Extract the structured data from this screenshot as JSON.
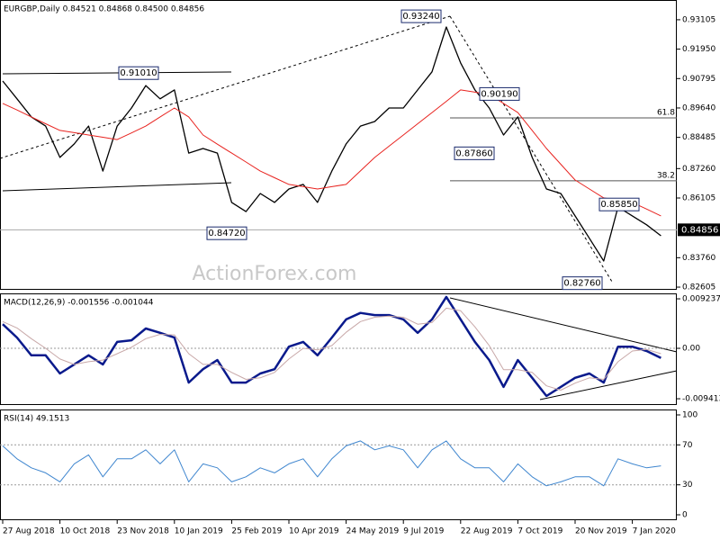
{
  "chart_data": [
    {
      "type": "line",
      "title": "EURGBP,Daily  0.84521 0.84868 0.84500 0.84856",
      "ylim": [
        0.825,
        0.9388
      ],
      "yticks": [
        0.93105,
        {
          "value": 0.9195,
          "label": "0.91950"
        },
        0.90795,
        {
          "value": 0.8964,
          "label": "0.89640"
        },
        0.88485,
        {
          "value": 0.8726,
          "label": "0.87260"
        },
        0.86105,
        {
          "value": 0.8376,
          "label": "0.83760"
        },
        0.82605
      ],
      "series": [
        {
          "color": "#000000",
          "values": [
            0.907,
            0.9,
            0.8929,
            0.8893,
            0.877,
            0.8823,
            0.8893,
            0.8716,
            0.8893,
            0.8964,
            0.9052,
            0.9,
            0.9035,
            0.8787,
            0.8805,
            0.8787,
            0.8593,
            0.8557,
            0.8628,
            0.8593,
            0.8646,
            0.8664,
            0.8593,
            0.8716,
            0.8823,
            0.8893,
            0.8911,
            0.8964,
            0.8964,
            0.9035,
            0.9106,
            0.9282,
            0.9141,
            0.9035,
            0.8964,
            0.8858,
            0.8929,
            0.877,
            0.8646,
            0.8628,
            0.854,
            0.8452,
            0.8363,
            0.8575,
            0.854,
            0.8505,
            0.8462
          ]
        },
        {
          "color": "#e8231f",
          "values": [
            0.8982,
            0.8956,
            0.8929,
            0.8902,
            0.8876,
            0.8867,
            0.8858,
            0.8849,
            0.884,
            0.8866,
            0.8893,
            0.8929,
            0.8964,
            0.8929,
            0.8858,
            0.8822,
            0.8787,
            0.8752,
            0.8716,
            0.869,
            0.8664,
            0.8655,
            0.8646,
            0.8655,
            0.8664,
            0.8717,
            0.877,
            0.8814,
            0.8858,
            0.8902,
            0.8946,
            0.899,
            0.9035,
            0.9026,
            0.9017,
            0.8982,
            0.8946,
            0.8876,
            0.8805,
            0.8743,
            0.8681,
            0.8646,
            0.8611,
            0.8602,
            0.8593,
            0.8567,
            0.854
          ]
        }
      ],
      "last_price": 0.84856,
      "annotations": [
        {
          "value": 0.9324,
          "label": "0.93240"
        },
        {
          "value": 0.9101,
          "label": "0.91010"
        },
        {
          "value": 0.9019,
          "label": "0.90190"
        },
        {
          "value": 0.8786,
          "label": "0.87860"
        },
        {
          "value": 0.8472,
          "label": "0.84720"
        },
        {
          "value": 0.8585,
          "label": "0.85850"
        },
        {
          "value": 0.8276,
          "label": "0.82760"
        }
      ],
      "fib": {
        "ratios": [
          61.8,
          38.2
        ],
        "levels": [
          0.8925,
          0.8678
        ]
      },
      "watermark": "ActionForex.com"
    },
    {
      "type": "line",
      "title": "MACD(12,26,9) -0.001556 -0.001044",
      "ylim": [
        -0.01058,
        0.01025
      ],
      "yticks": [
        0.009237,
        {
          "value": 0,
          "label": "0.00"
        },
        -0.009413
      ],
      "levels": [
        0
      ],
      "series": [
        {
          "color": "#0a1a8c",
          "values": [
            0.0045,
            0.002,
            -0.0013,
            -0.0013,
            -0.0047,
            -0.003,
            -0.0013,
            -0.003,
            0.0012,
            0.0015,
            0.0037,
            0.0029,
            0.002,
            -0.0064,
            -0.0039,
            -0.0022,
            -0.0064,
            -0.0064,
            -0.0047,
            -0.0039,
            0.0003,
            0.0012,
            -0.0013,
            0.002,
            0.0054,
            0.0066,
            0.0062,
            0.0062,
            0.0054,
            0.0029,
            0.0054,
            0.0096,
            0.0054,
            0.0012,
            -0.0022,
            -0.0072,
            -0.0022,
            -0.0055,
            -0.0089,
            -0.0072,
            -0.0055,
            -0.0047,
            -0.0064,
            0.0003,
            0.0003,
            -0.0005,
            -0.0018
          ]
        },
        {
          "color": "#c8a8a8",
          "values": [
            0.005,
            0.0038,
            0.0018,
            0.0,
            -0.002,
            -0.003,
            -0.0025,
            -0.0022,
            -0.001,
            0.0002,
            0.0018,
            0.0026,
            0.0025,
            -0.001,
            -0.003,
            -0.003,
            -0.0045,
            -0.0058,
            -0.0055,
            -0.0045,
            -0.002,
            0.0,
            -0.0003,
            0.0005,
            0.003,
            0.005,
            0.0058,
            0.006,
            0.0058,
            0.0045,
            0.0048,
            0.0075,
            0.007,
            0.004,
            0.0005,
            -0.004,
            -0.004,
            -0.0045,
            -0.007,
            -0.0078,
            -0.0065,
            -0.0055,
            -0.0058,
            -0.0025,
            -0.0005,
            -0.0002,
            -0.001
          ]
        }
      ]
    },
    {
      "type": "line",
      "title": "RSI(14) 49.1513",
      "ylim": [
        -5.4,
        105.4
      ],
      "yticks": [
        100,
        70,
        30,
        0
      ],
      "levels": [
        70,
        30
      ],
      "categories": [
        "27 Aug 2018",
        null,
        null,
        null,
        "10 Oct 2018",
        null,
        null,
        null,
        "23 Nov 2018",
        null,
        null,
        null,
        "10 Jan 2019",
        null,
        null,
        null,
        "25 Feb 2019",
        null,
        null,
        null,
        "10 Apr 2019",
        null,
        null,
        null,
        "24 May 2019",
        null,
        null,
        null,
        "9 Jul 2019",
        null,
        null,
        null,
        "22 Aug 2019",
        null,
        null,
        null,
        "7 Oct 2019",
        null,
        null,
        null,
        "20 Nov 2019",
        null,
        null,
        null,
        "7 Jan 2020",
        null,
        null
      ],
      "series": [
        {
          "color": "#3f86cf",
          "values": [
            69,
            56,
            47,
            42,
            33,
            51,
            60,
            38,
            56,
            56,
            65,
            51,
            65,
            33,
            51,
            47,
            33,
            38,
            47,
            42,
            51,
            56,
            38,
            56,
            69,
            74,
            65,
            69,
            65,
            47,
            65,
            74,
            56,
            47,
            47,
            33,
            51,
            38,
            29,
            33,
            38,
            38,
            29,
            56,
            51,
            47,
            49
          ]
        }
      ]
    }
  ]
}
